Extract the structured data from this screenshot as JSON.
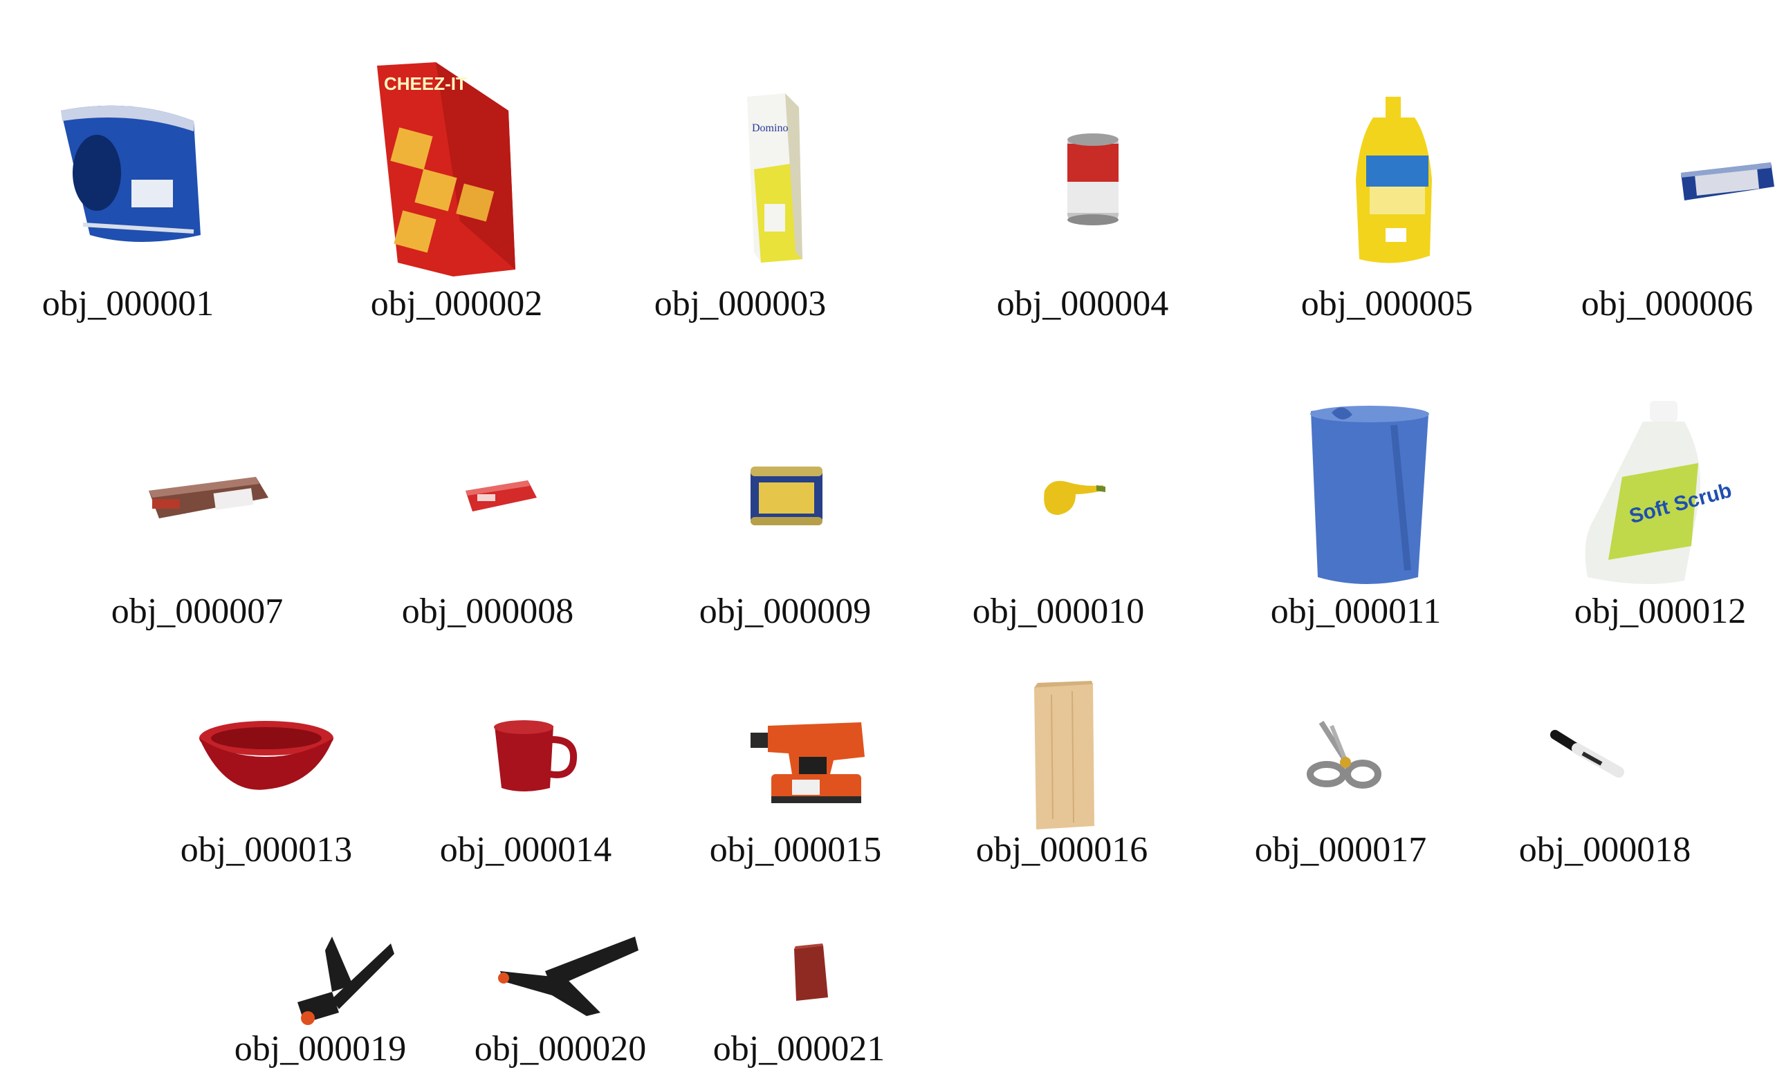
{
  "objects": [
    {
      "label": "obj_000001",
      "icon": "coffee-can-icon"
    },
    {
      "label": "obj_000002",
      "icon": "cracker-box-icon",
      "text": "CHEEZ-IT"
    },
    {
      "label": "obj_000003",
      "icon": "sugar-box-icon",
      "text": "Domino"
    },
    {
      "label": "obj_000004",
      "icon": "soup-can-icon"
    },
    {
      "label": "obj_000005",
      "icon": "mustard-bottle-icon"
    },
    {
      "label": "obj_000006",
      "icon": "tuna-can-icon"
    },
    {
      "label": "obj_000007",
      "icon": "pudding-box-icon"
    },
    {
      "label": "obj_000008",
      "icon": "gelatin-box-icon"
    },
    {
      "label": "obj_000009",
      "icon": "meat-can-icon"
    },
    {
      "label": "obj_000010",
      "icon": "banana-icon"
    },
    {
      "label": "obj_000011",
      "icon": "pitcher-icon"
    },
    {
      "label": "obj_000012",
      "icon": "bleach-bottle-icon",
      "text": "Soft Scrub"
    },
    {
      "label": "obj_000013",
      "icon": "bowl-icon"
    },
    {
      "label": "obj_000014",
      "icon": "mug-icon"
    },
    {
      "label": "obj_000015",
      "icon": "power-drill-icon"
    },
    {
      "label": "obj_000016",
      "icon": "wood-block-icon"
    },
    {
      "label": "obj_000017",
      "icon": "scissors-icon"
    },
    {
      "label": "obj_000018",
      "icon": "marker-icon"
    },
    {
      "label": "obj_000019",
      "icon": "clamp-icon"
    },
    {
      "label": "obj_000020",
      "icon": "large-clamp-icon"
    },
    {
      "label": "obj_000021",
      "icon": "foam-brick-icon"
    }
  ],
  "colors": {
    "coffee_blue": "#1f4fb0",
    "cheezit_red": "#d3231c",
    "mustard_yellow": "#f2d41c",
    "pitcher_blue": "#4a74c8",
    "bleach_white": "#eef0ec",
    "bowl_red": "#b5121b",
    "drill_orange": "#e0531e",
    "wood": "#e6c596",
    "clamp_black": "#1c1c1c",
    "brick_red": "#8f2a22"
  }
}
